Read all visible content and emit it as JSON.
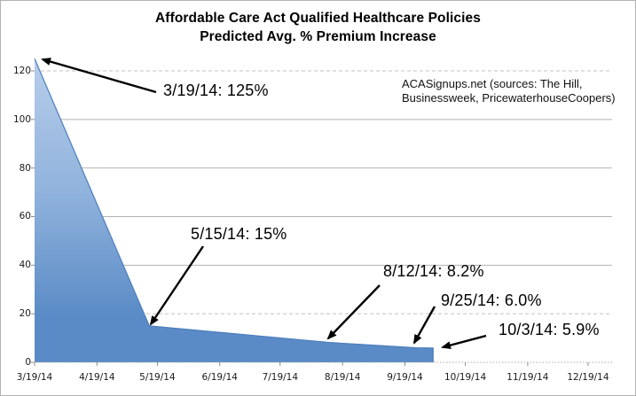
{
  "title": {
    "line1": "Affordable Care Act Qualified Healthcare Policies",
    "line2": "Predicted Avg. % Premium Increase"
  },
  "source_note": {
    "line1": "ACASignups.net (sources: The Hill,",
    "line2": "Businessweek, PricewaterhouseCoopers)"
  },
  "chart_data": {
    "type": "area",
    "title": "Affordable Care Act Qualified Healthcare Policies — Predicted Avg. % Premium Increase",
    "xlabel": "",
    "ylabel": "",
    "ylim": [
      0,
      125
    ],
    "grid": "horizontal",
    "legend": "none",
    "series": [
      {
        "name": "Predicted Avg. % Premium Increase",
        "points": [
          {
            "date": "3/19/14",
            "value": 125
          },
          {
            "date": "5/15/14",
            "value": 15
          },
          {
            "date": "8/12/14",
            "value": 8.2
          },
          {
            "date": "9/25/14",
            "value": 6.0
          },
          {
            "date": "10/3/14",
            "value": 5.9
          }
        ]
      }
    ],
    "annotations": [
      {
        "label": "3/19/14: 125%",
        "date": "3/19/14",
        "value": 125
      },
      {
        "label": "5/15/14: 15%",
        "date": "5/15/14",
        "value": 15
      },
      {
        "label": "8/12/14: 8.2%",
        "date": "8/12/14",
        "value": 8.2
      },
      {
        "label": "9/25/14: 6.0%",
        "date": "9/25/14",
        "value": 6.0
      },
      {
        "label": "10/3/14: 5.9%",
        "date": "10/3/14",
        "value": 5.9
      }
    ],
    "x_tick_labels": [
      "3/19/14",
      "4/19/14",
      "5/19/14",
      "6/19/14",
      "7/19/14",
      "8/19/14",
      "9/19/14",
      "10/19/14",
      "11/19/14",
      "12/19/14"
    ],
    "y_tick_labels": [
      "0",
      "20",
      "40",
      "60",
      "80",
      "100",
      "120"
    ],
    "y_ticks": [
      0,
      20,
      40,
      60,
      80,
      100,
      120
    ],
    "colors": {
      "area_top": "#b7cdea",
      "area_mid": "#8fb2dc",
      "area_bottom": "#5a8bc6",
      "area_edge": "#4d7ebd",
      "gridline_solid": "#b3b3b3",
      "gridline_dashed": "#c0c0c0",
      "axis_dotted": "#ababab",
      "arrow": "#000000",
      "text": "#000000"
    }
  }
}
